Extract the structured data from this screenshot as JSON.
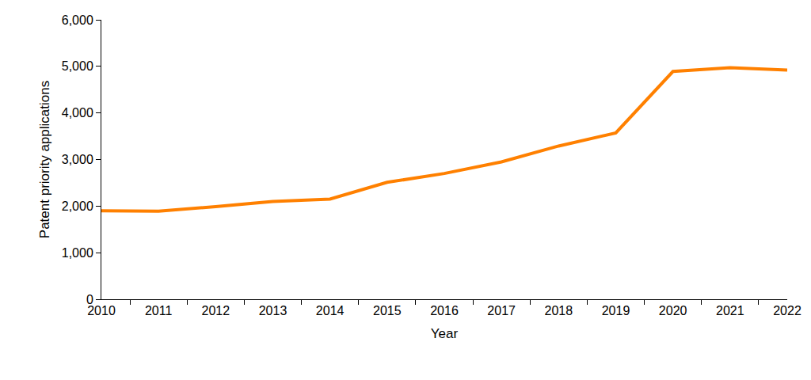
{
  "chart_data": {
    "type": "line",
    "x_label": "Year",
    "y_label": "Patent priority applications",
    "categories": [
      "2010",
      "2011",
      "2012",
      "2013",
      "2014",
      "2015",
      "2016",
      "2017",
      "2018",
      "2019",
      "2020",
      "2021",
      "2022"
    ],
    "values": [
      1900,
      1890,
      1990,
      2100,
      2150,
      2510,
      2700,
      2950,
      3290,
      3570,
      4890,
      4970,
      4920
    ],
    "color": "#ff8000",
    "ylim": [
      0,
      6000
    ],
    "yticks": [
      0,
      {
        "value": 1000,
        "label": "1,000"
      },
      {
        "value": 2000,
        "label": "2,000"
      },
      {
        "value": 3000,
        "label": "3,000"
      },
      {
        "value": 4000,
        "label": "4,000"
      },
      {
        "value": 5000,
        "label": "5,000"
      },
      {
        "value": 6000,
        "label": "6,000"
      }
    ],
    "grid": false
  }
}
